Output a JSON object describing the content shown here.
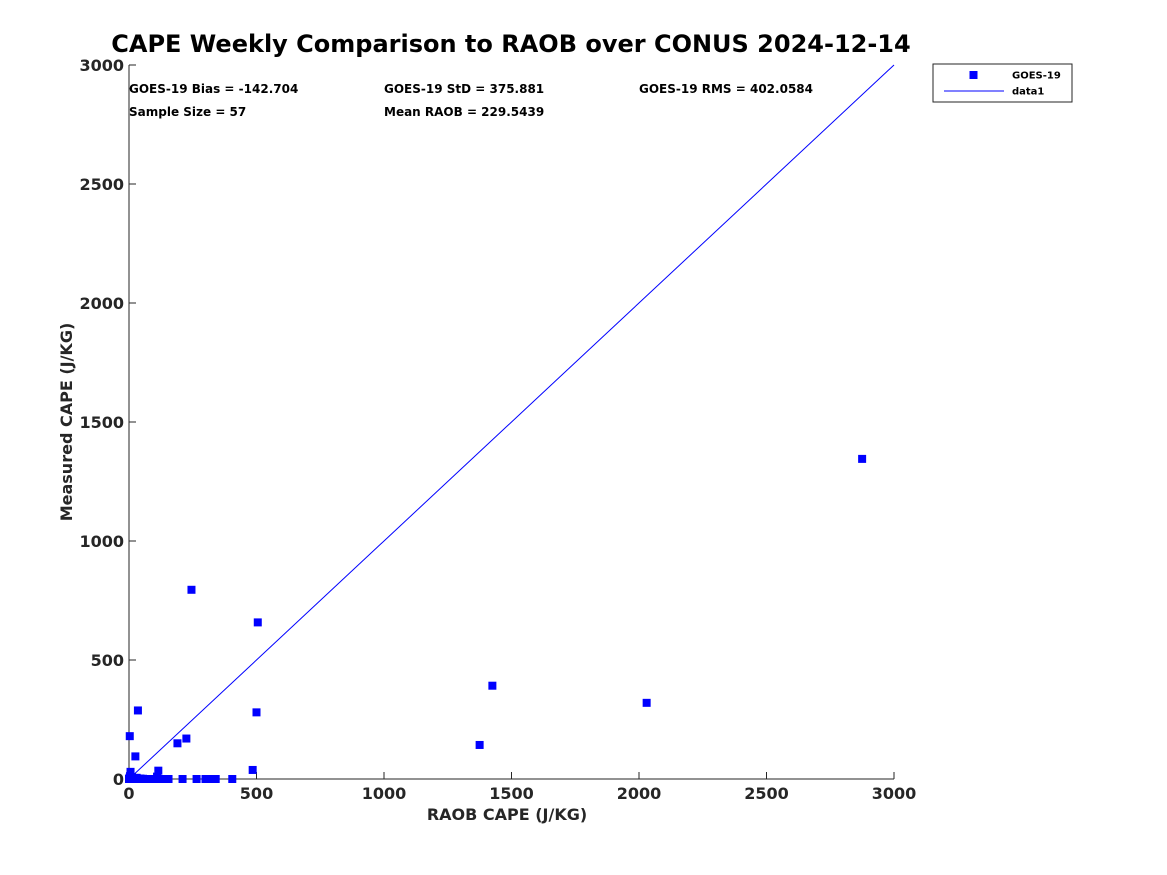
{
  "chart_data": {
    "type": "scatter",
    "title": "CAPE Weekly Comparison to RAOB over CONUS 2024-12-14",
    "xlabel": "RAOB CAPE (J/KG)",
    "ylabel": "Measured CAPE (J/KG)",
    "xlim": [
      0,
      3000
    ],
    "ylim": [
      0,
      3000
    ],
    "xticks": [
      0,
      500,
      1000,
      1500,
      2000,
      2500,
      3000
    ],
    "yticks": [
      0,
      500,
      1000,
      1500,
      2000,
      2500,
      3000
    ],
    "grid": false,
    "legend_position": "top-right outside",
    "stats": {
      "bias": "GOES-19 Bias = -142.704",
      "std": "GOES-19 StD = 375.881",
      "rms": "GOES-19 RMS = 402.0584",
      "sample_size": "Sample Size = 57",
      "mean_raob": "Mean RAOB = 229.5439"
    },
    "series": [
      {
        "name": "GOES-19",
        "kind": "scatter",
        "marker": "square",
        "color": "#0000ff",
        "points": [
          [
            0,
            0
          ],
          [
            2,
            5
          ],
          [
            4,
            12
          ],
          [
            6,
            30
          ],
          [
            3,
            180
          ],
          [
            8,
            2
          ],
          [
            10,
            0
          ],
          [
            12,
            8
          ],
          [
            15,
            0
          ],
          [
            18,
            3
          ],
          [
            20,
            0
          ],
          [
            25,
            95
          ],
          [
            28,
            0
          ],
          [
            30,
            5
          ],
          [
            35,
            288
          ],
          [
            40,
            0
          ],
          [
            45,
            2
          ],
          [
            50,
            0
          ],
          [
            55,
            1
          ],
          [
            60,
            0
          ],
          [
            65,
            0
          ],
          [
            70,
            0
          ],
          [
            80,
            0
          ],
          [
            90,
            0
          ],
          [
            100,
            0
          ],
          [
            110,
            10
          ],
          [
            115,
            35
          ],
          [
            120,
            0
          ],
          [
            130,
            0
          ],
          [
            140,
            0
          ],
          [
            150,
            0
          ],
          [
            155,
            0
          ],
          [
            190,
            150
          ],
          [
            210,
            0
          ],
          [
            225,
            170
          ],
          [
            245,
            795
          ],
          [
            265,
            0
          ],
          [
            300,
            0
          ],
          [
            310,
            0
          ],
          [
            330,
            0
          ],
          [
            340,
            0
          ],
          [
            405,
            0
          ],
          [
            485,
            38
          ],
          [
            500,
            280
          ],
          [
            505,
            658
          ],
          [
            1375,
            143
          ],
          [
            1425,
            392
          ],
          [
            2030,
            320
          ],
          [
            2875,
            1345
          ]
        ]
      },
      {
        "name": "data1",
        "kind": "line",
        "color": "#0000ff",
        "points": [
          [
            0,
            0
          ],
          [
            3000,
            3000
          ]
        ]
      }
    ]
  }
}
